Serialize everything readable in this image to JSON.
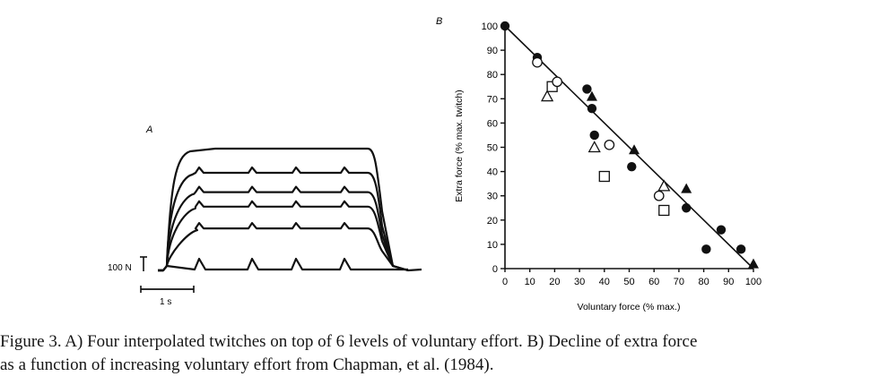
{
  "panel_a": {
    "label": "A",
    "scale_bar_force": "100 N",
    "scale_bar_time": "1 s",
    "traces": [
      {
        "plateau": 100,
        "twitch_at_rest": 0
      },
      {
        "plateau": 80,
        "twitch_at_rest": 0
      },
      {
        "plateau": 64,
        "twitch_at_rest": 0
      },
      {
        "plateau": 52,
        "twitch_at_rest": 0
      },
      {
        "plateau": 34,
        "twitch_at_rest": 0
      },
      {
        "plateau": 0,
        "twitch_at_rest": 0
      }
    ]
  },
  "chart_data": {
    "type": "scatter",
    "panel_label": "B",
    "xlabel": "Voluntary force (% max.)",
    "ylabel": "Extra force (% max. twitch)",
    "xlim": [
      0,
      100
    ],
    "ylim": [
      0,
      100
    ],
    "xticks": [
      "0",
      "10",
      "20",
      "30",
      "40",
      "50",
      "60",
      "70",
      "80",
      "90",
      "100"
    ],
    "yticks": [
      "0",
      "10",
      "20",
      "30",
      "40",
      "50",
      "60",
      "70",
      "80",
      "90",
      "100"
    ],
    "regression_line": {
      "from": [
        0,
        100
      ],
      "to": [
        100,
        0
      ]
    },
    "series": [
      {
        "marker": "filled-circle",
        "points": [
          [
            0,
            100
          ],
          [
            13,
            87
          ],
          [
            33,
            74
          ],
          [
            35,
            66
          ],
          [
            36,
            55
          ],
          [
            51,
            42
          ],
          [
            73,
            25
          ],
          [
            81,
            8
          ],
          [
            87,
            16
          ],
          [
            95,
            8
          ]
        ]
      },
      {
        "marker": "open-triangle",
        "points": [
          [
            17,
            71
          ],
          [
            36,
            50
          ],
          [
            64,
            34
          ]
        ]
      },
      {
        "marker": "open-square",
        "points": [
          [
            19,
            75
          ],
          [
            40,
            38
          ],
          [
            64,
            24
          ]
        ]
      },
      {
        "marker": "open-circle",
        "points": [
          [
            13,
            85
          ],
          [
            21,
            77
          ],
          [
            42,
            51
          ],
          [
            62,
            30
          ]
        ]
      },
      {
        "marker": "filled-triangle",
        "points": [
          [
            35,
            71
          ],
          [
            52,
            49
          ],
          [
            73,
            33
          ],
          [
            100,
            2
          ]
        ]
      }
    ]
  },
  "caption": {
    "line1": "Figure 3. A) Four interpolated twitches on top of 6 levels of voluntary effort. B) Decline of extra force",
    "line2": "as a function of increasing voluntary effort from Chapman, et al. (1984)."
  }
}
